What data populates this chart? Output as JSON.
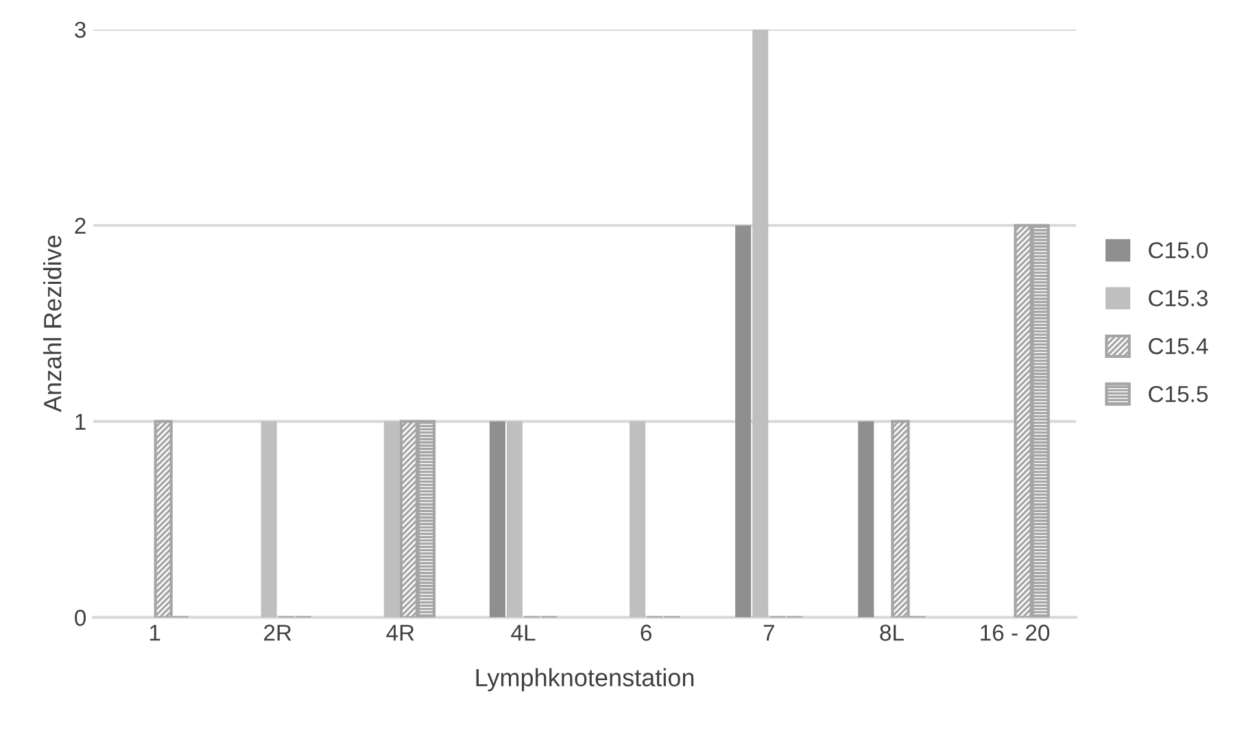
{
  "chart_data": {
    "type": "bar",
    "xlabel": "Lymphknotenstation",
    "ylabel": "Anzahl Rezidive",
    "categories": [
      "1",
      "2R",
      "4R",
      "4L",
      "6",
      "7",
      "8L",
      "16 - 20"
    ],
    "series": [
      {
        "name": "C15.0",
        "color": "#8f8f8f",
        "values": [
          0,
          0,
          0,
          1,
          0,
          2,
          1,
          0
        ]
      },
      {
        "name": "C15.3",
        "color": "#bfbfbf",
        "values": [
          0,
          1,
          1,
          1,
          1,
          3,
          0,
          0
        ]
      },
      {
        "name": "C15.4",
        "color": "#a5a5a5",
        "values": [
          1,
          0,
          1,
          0,
          0,
          0,
          1,
          2
        ]
      },
      {
        "name": "C15.5",
        "color": "#a5a5a5",
        "values": [
          0,
          0,
          1,
          0,
          0,
          0,
          0,
          2
        ]
      }
    ],
    "ylim": [
      0,
      3
    ],
    "yticks": [
      0,
      1,
      2,
      3
    ],
    "grid": "y",
    "legend": "right"
  }
}
